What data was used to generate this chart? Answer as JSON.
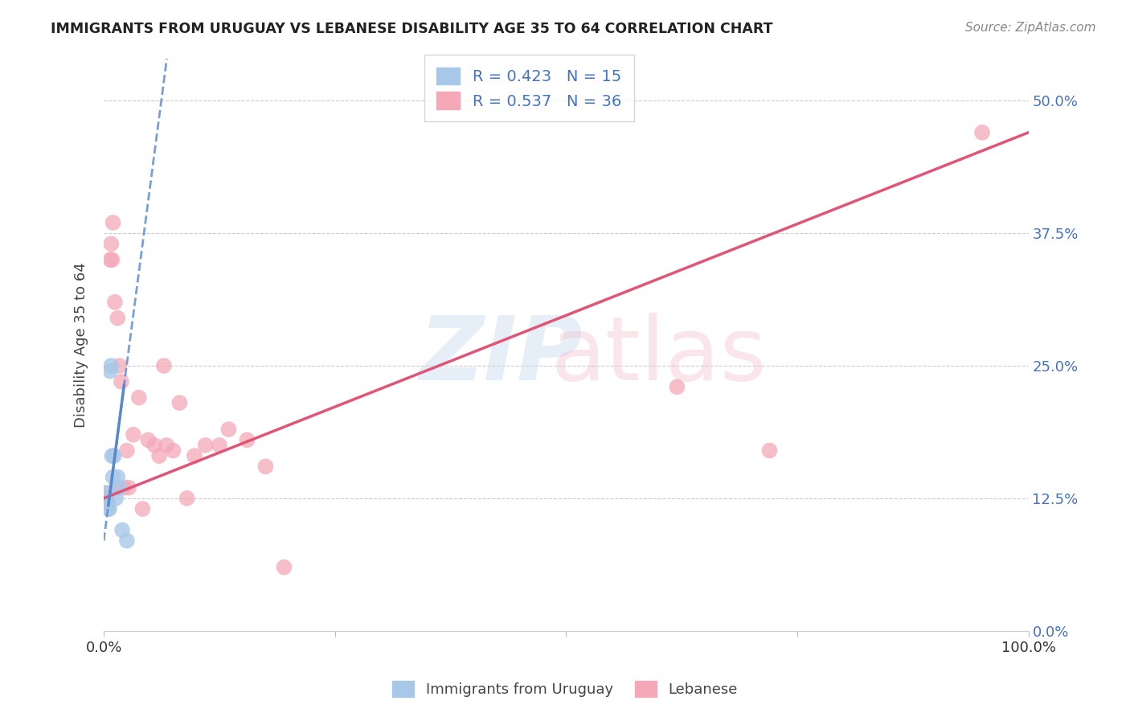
{
  "title": "IMMIGRANTS FROM URUGUAY VS LEBANESE DISABILITY AGE 35 TO 64 CORRELATION CHART",
  "source": "Source: ZipAtlas.com",
  "ylabel": "Disability Age 35 to 64",
  "ytick_labels": [
    "0.0%",
    "12.5%",
    "25.0%",
    "37.5%",
    "50.0%"
  ],
  "ytick_values": [
    0.0,
    0.125,
    0.25,
    0.375,
    0.5
  ],
  "xlim": [
    0.0,
    1.0
  ],
  "ylim": [
    0.0,
    0.54
  ],
  "legend_r_uruguay": "R = 0.423",
  "legend_n_uruguay": "N = 15",
  "legend_r_lebanese": "R = 0.537",
  "legend_n_lebanese": "N = 36",
  "color_uruguay": "#a8c8e8",
  "color_lebanese": "#f4a8b8",
  "color_trend_uruguay": "#5588cc",
  "color_trend_lebanese": "#e05575",
  "label_uruguay": "Immigrants from Uruguay",
  "label_lebanese": "Lebanese",
  "uruguay_x": [
    0.002,
    0.003,
    0.004,
    0.005,
    0.006,
    0.007,
    0.008,
    0.009,
    0.01,
    0.011,
    0.013,
    0.015,
    0.017,
    0.02,
    0.025
  ],
  "uruguay_y": [
    0.13,
    0.125,
    0.12,
    0.115,
    0.115,
    0.245,
    0.25,
    0.165,
    0.145,
    0.165,
    0.125,
    0.145,
    0.135,
    0.095,
    0.085
  ],
  "lebanese_x": [
    0.003,
    0.004,
    0.005,
    0.007,
    0.008,
    0.009,
    0.01,
    0.012,
    0.014,
    0.015,
    0.017,
    0.019,
    0.022,
    0.025,
    0.027,
    0.032,
    0.038,
    0.042,
    0.048,
    0.055,
    0.06,
    0.068,
    0.075,
    0.082,
    0.09,
    0.098,
    0.11,
    0.125,
    0.135,
    0.155,
    0.175,
    0.195,
    0.065,
    0.62,
    0.72,
    0.95
  ],
  "lebanese_y": [
    0.13,
    0.125,
    0.12,
    0.35,
    0.365,
    0.35,
    0.385,
    0.31,
    0.135,
    0.295,
    0.25,
    0.235,
    0.135,
    0.17,
    0.135,
    0.185,
    0.22,
    0.115,
    0.18,
    0.175,
    0.165,
    0.175,
    0.17,
    0.215,
    0.125,
    0.165,
    0.175,
    0.175,
    0.19,
    0.18,
    0.155,
    0.06,
    0.25,
    0.23,
    0.17,
    0.47
  ],
  "trend_lebanese_x0": 0.0,
  "trend_lebanese_y0": 0.125,
  "trend_lebanese_x1": 1.0,
  "trend_lebanese_y1": 0.47,
  "trend_uruguay_x0": 0.0,
  "trend_uruguay_y0": 0.085,
  "trend_uruguay_x1": 0.027,
  "trend_uruguay_y1": 0.265
}
